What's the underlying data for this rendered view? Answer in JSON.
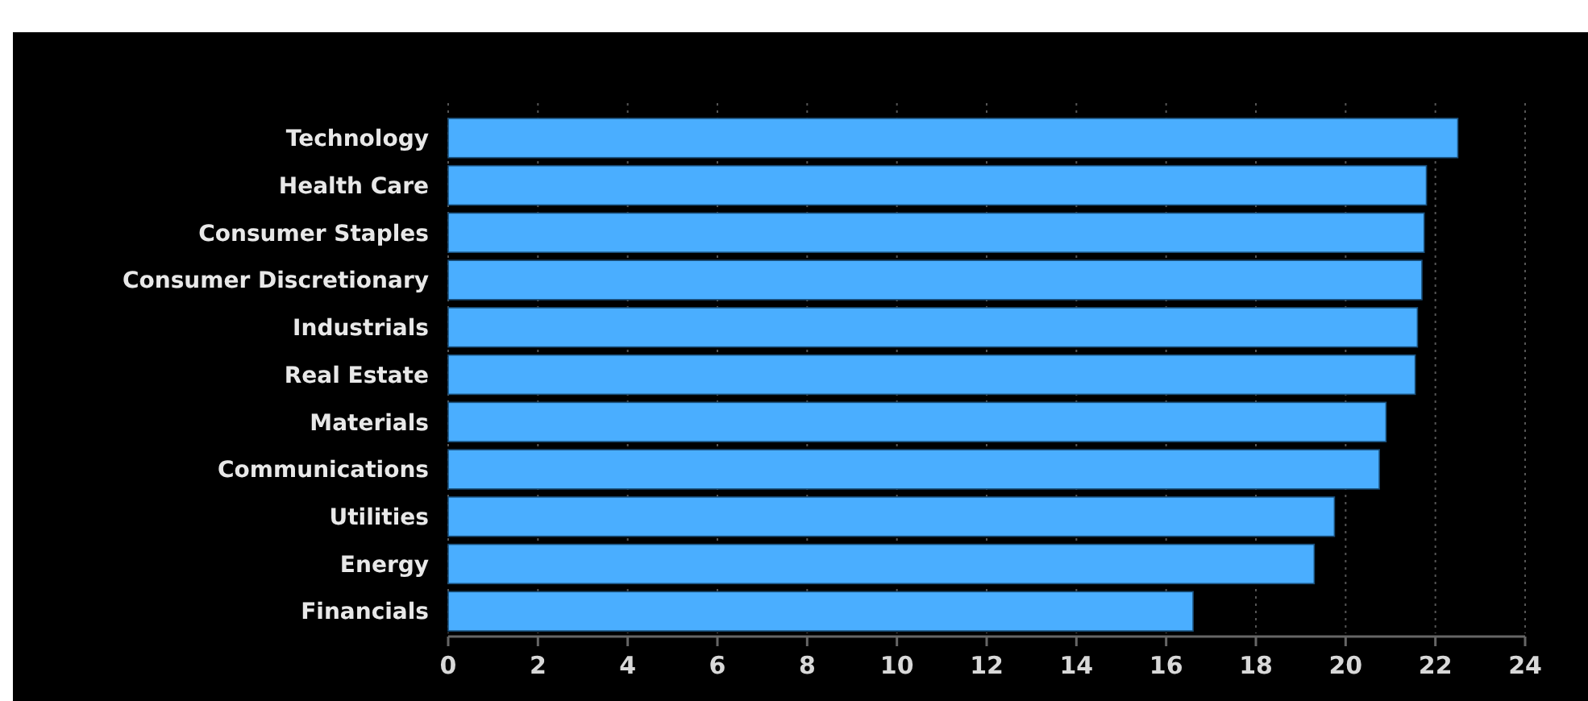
{
  "chart_data": {
    "type": "bar",
    "orientation": "horizontal",
    "categories": [
      "Technology",
      "Health Care",
      "Consumer Staples",
      "Consumer Discretionary",
      "Industrials",
      "Real Estate",
      "Materials",
      "Communications",
      "Utilities",
      "Energy",
      "Financials"
    ],
    "values": [
      22.5,
      21.8,
      21.75,
      21.7,
      21.6,
      21.55,
      20.9,
      20.75,
      19.75,
      19.3,
      16.6
    ],
    "color": "#4aaeff",
    "xlim": [
      0,
      24
    ],
    "xticks": [
      0,
      2,
      4,
      6,
      8,
      10,
      12,
      14,
      16,
      18,
      20,
      22,
      24
    ],
    "grid": "x"
  }
}
